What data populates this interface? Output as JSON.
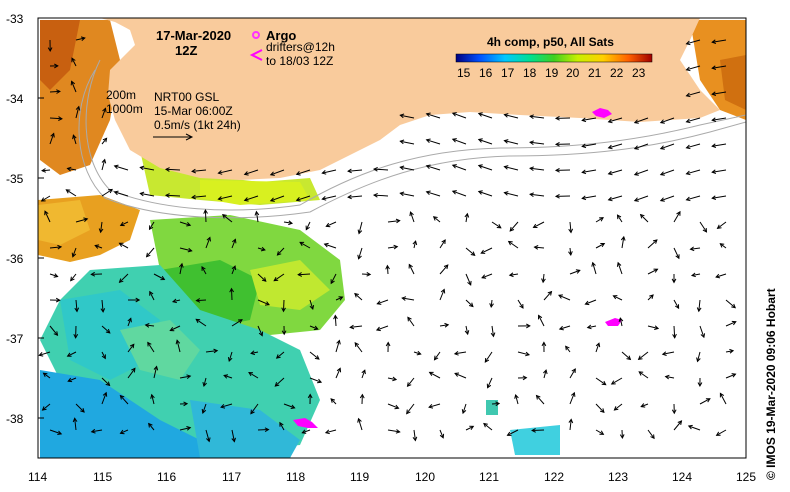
{
  "header": {
    "date": "17-Mar-2020",
    "time": "12Z"
  },
  "legend": {
    "argo_label": "Argo",
    "drifters_line1": "drifters@12h",
    "drifters_line2": "to 18/03 12Z",
    "isobath_200": "200m",
    "isobath_1000": "1000m",
    "altimetry_line1": "NRT00 GSL",
    "altimetry_line2": "15-Mar 06:00Z",
    "scale_text": "0.5m/s (1kt 24h)"
  },
  "colorbar": {
    "title": "4h comp, p50, All Sats",
    "ticks": [
      "15",
      "16",
      "17",
      "18",
      "19",
      "20",
      "21",
      "22",
      "23"
    ]
  },
  "axes": {
    "y_labels": [
      "-33",
      "-34",
      "-35",
      "-36",
      "-37",
      "-38"
    ],
    "x_labels": [
      "114",
      "115",
      "116",
      "117",
      "118",
      "119",
      "120",
      "121",
      "122",
      "123",
      "124",
      "125"
    ]
  },
  "credit": "© IMOS 19-Mar-2020 09:06 Hobart",
  "colors": {
    "land": "#f9cb9c",
    "argo": "#ff33ff",
    "drifter": "#ff00ff",
    "isobath": "#aaaaaa"
  }
}
